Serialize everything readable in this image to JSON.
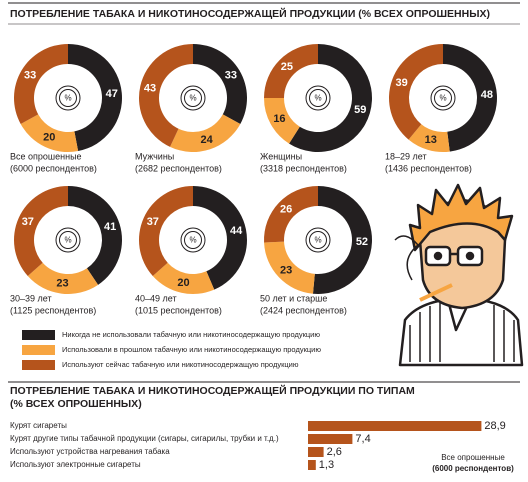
{
  "title": "ПОТРЕБЛЕНИЕ ТАБАКА И НИКОТИНОСОДЕРЖАЩЕЙ ПРОДУКЦИИ (% ВСЕХ ОПРОШЕННЫХ)",
  "legend": [
    {
      "name": "Никогда не использовали табачную или никотиносодержащую продукцию",
      "color": "#231f20"
    },
    {
      "name": "Использовали в прошлом табачную или никотиносодержащую продукцию",
      "color": "#f7a541"
    },
    {
      "name": "Используют сейчас табачную или никотиносодержащую продукцию",
      "color": "#b5541c"
    }
  ],
  "chart_data": [
    {
      "type": "pie",
      "label": "Все опрошенные",
      "respondents": "(6000 респондентов)",
      "center_label": "%",
      "values": [
        47,
        20,
        33
      ]
    },
    {
      "type": "pie",
      "label": "Мужчины",
      "respondents": "(2682 респондентов)",
      "center_label": "%",
      "values": [
        33,
        24,
        43
      ]
    },
    {
      "type": "pie",
      "label": "Женщины",
      "respondents": "(3318 респондентов)",
      "center_label": "%",
      "values": [
        59,
        16,
        25
      ]
    },
    {
      "type": "pie",
      "label": "18–29 лет",
      "respondents": "(1436 респондентов)",
      "center_label": "%",
      "values": [
        48,
        13,
        39
      ]
    },
    {
      "type": "pie",
      "label": "30–39 лет",
      "respondents": "(1125 респондентов)",
      "center_label": "%",
      "values": [
        41,
        23,
        37
      ]
    },
    {
      "type": "pie",
      "label": "40–49 лет",
      "respondents": "(1015 респондентов)",
      "center_label": "%",
      "values": [
        44,
        20,
        37
      ]
    },
    {
      "type": "pie",
      "label": "50 лет и старше",
      "respondents": "(2424 респондентов)",
      "center_label": "%",
      "values": [
        52,
        23,
        26
      ]
    },
    {
      "type": "bar",
      "orientation": "horizontal",
      "title": "ПОТРЕБЛЕНИЕ ТАБАКА И НИКОТИНОСОДЕРЖАЩЕЙ ПРОДУКЦИИ ПО ТИПАМ",
      "subtitle": "(% ВСЕХ ОПРОШЕННЫХ)",
      "categories": [
        "Курят сигареты",
        "Курят другие типы табачной продукции (сигары, сигарилы, трубки и т.д.)",
        "Используют устройства нагревания табака",
        "Используют электронные сигареты"
      ],
      "values": [
        28.9,
        7.4,
        2.6,
        1.3
      ],
      "value_labels": [
        "28,9",
        "7,4",
        "2,6",
        "1,3"
      ],
      "color": "#b5541c",
      "annotation": "Все опрошенные",
      "annotation_sub": "(6000 респондентов)"
    }
  ]
}
